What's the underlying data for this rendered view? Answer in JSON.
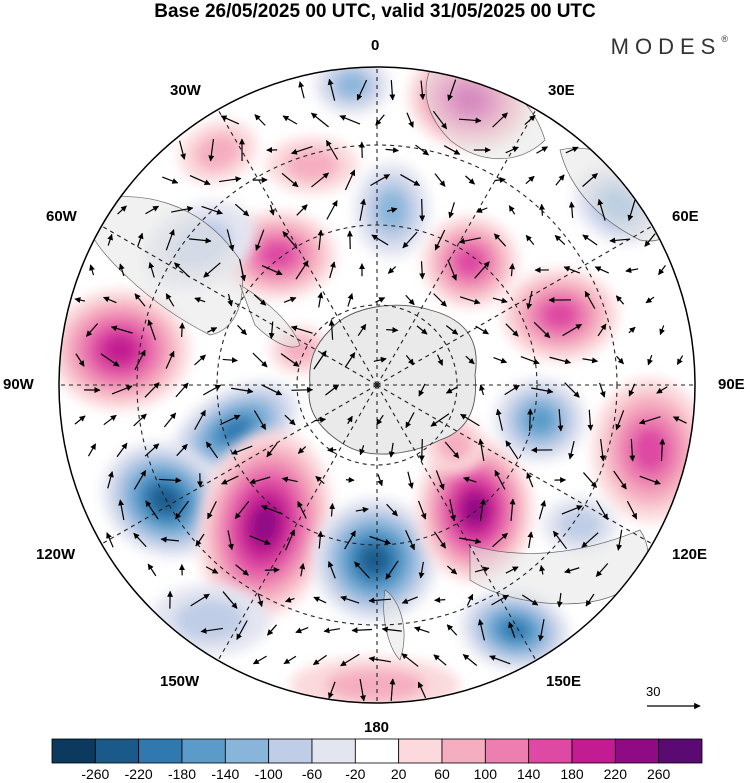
{
  "title": "Base 26/05/2025 00 UTC, valid 31/05/2025 00 UTC",
  "logo": "MODES",
  "logo_mark": "®",
  "longitude_labels": {
    "lon_0": "0",
    "lon_30e": "30E",
    "lon_60e": "60E",
    "lon_90e": "90E",
    "lon_120e": "120E",
    "lon_150e": "150E",
    "lon_180": "180",
    "lon_150w": "150W",
    "lon_120w": "120W",
    "lon_90w": "90W",
    "lon_60w": "60W",
    "lon_30w": "30W"
  },
  "reference_vector": {
    "value": "30"
  },
  "colorbar": {
    "labels": [
      "-260",
      "-220",
      "-180",
      "-140",
      "-100",
      "-60",
      "-20",
      "20",
      "60",
      "100",
      "140",
      "180",
      "220",
      "260"
    ],
    "colors": [
      "#0c3a5e",
      "#1a5a8a",
      "#2f79b0",
      "#5a9bc9",
      "#8ab5db",
      "#bfcde6",
      "#e3e5f1",
      "#ffffff",
      "#fbd9dc",
      "#f5aec0",
      "#ec7fb0",
      "#de4aa3",
      "#c31b91",
      "#8f0a85",
      "#5a0a72"
    ]
  },
  "colors": {
    "land": "#e6e6e6",
    "antarctica": "#eaeaea"
  }
}
